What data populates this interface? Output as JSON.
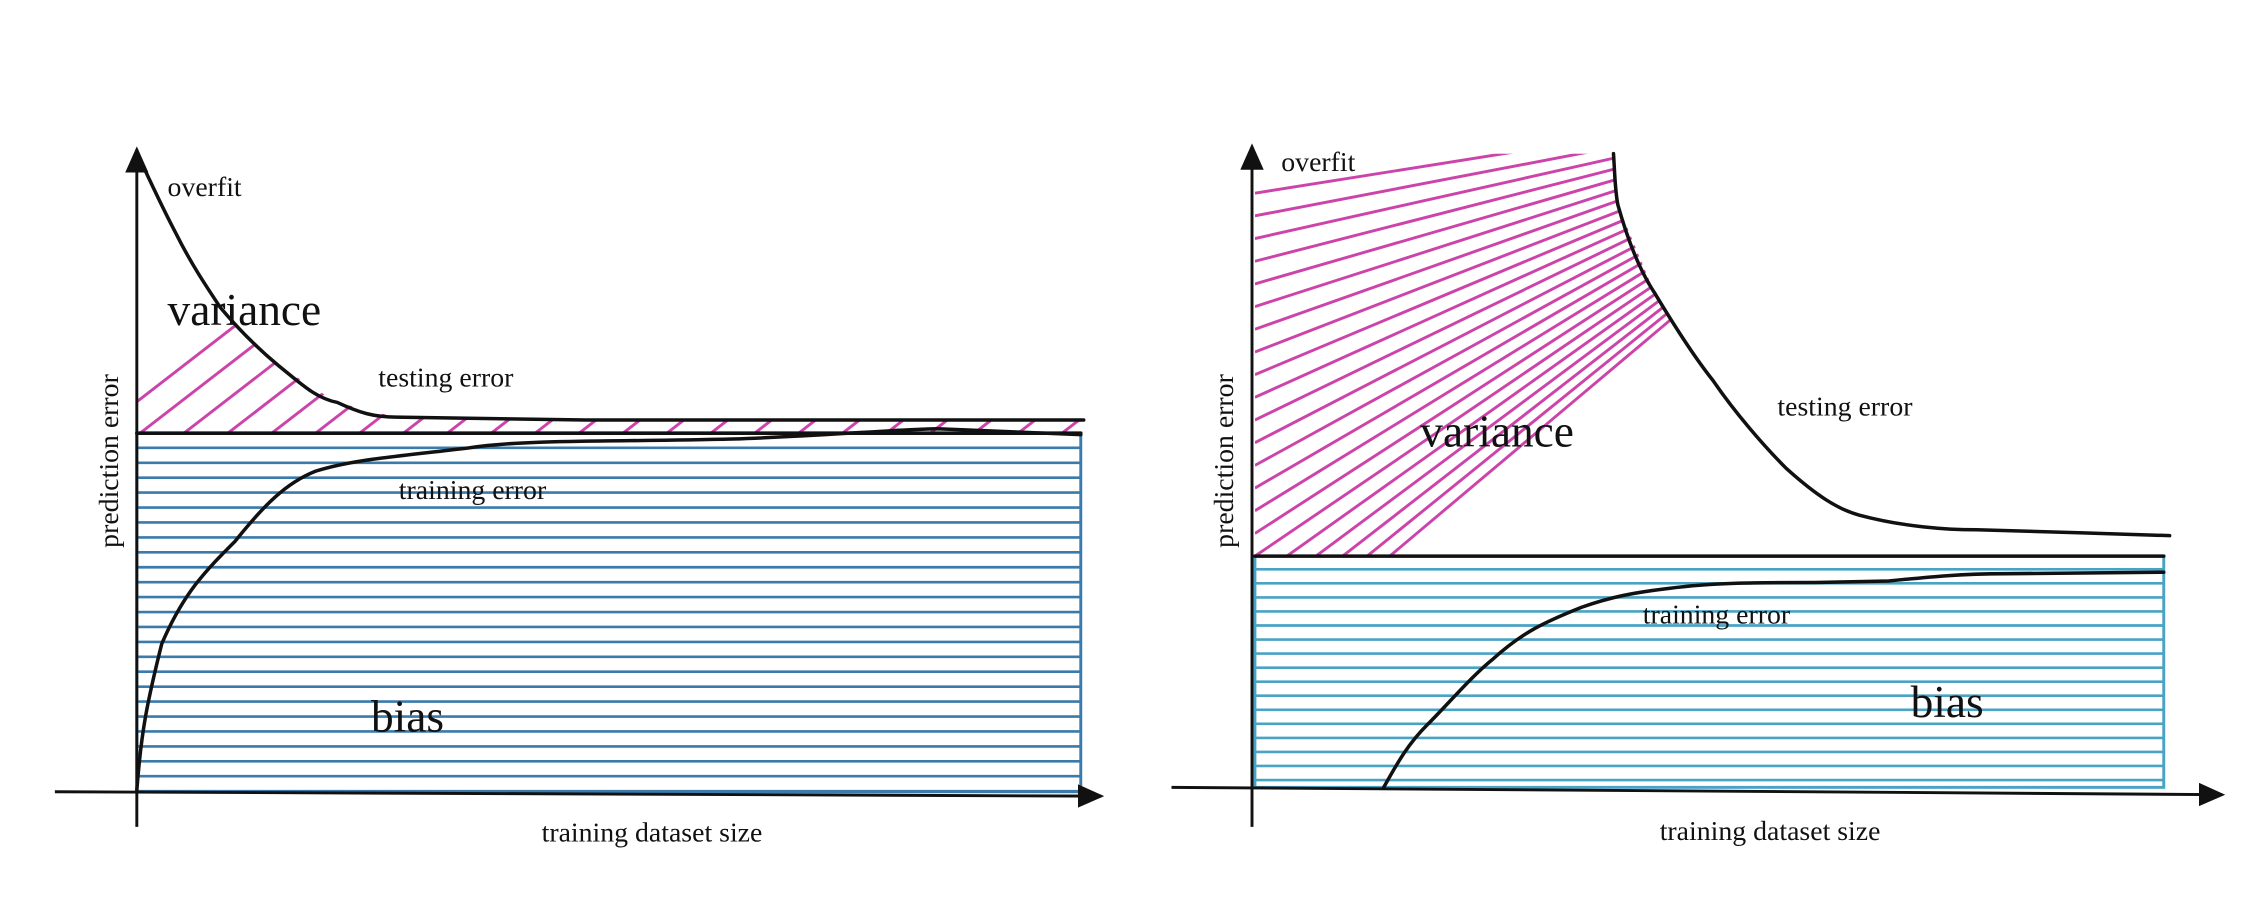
{
  "panels": [
    {
      "overfit": "overfit",
      "variance": "variance",
      "testing_error": "testing error",
      "training_error": "training error",
      "bias": "bias",
      "y_label": "prediction error",
      "x_label": "training dataset size"
    },
    {
      "overfit": "overfit",
      "variance": "variance",
      "testing_error": "testing error",
      "training_error": "training error",
      "bias": "bias",
      "y_label": "prediction error",
      "x_label": "training dataset size"
    }
  ]
}
